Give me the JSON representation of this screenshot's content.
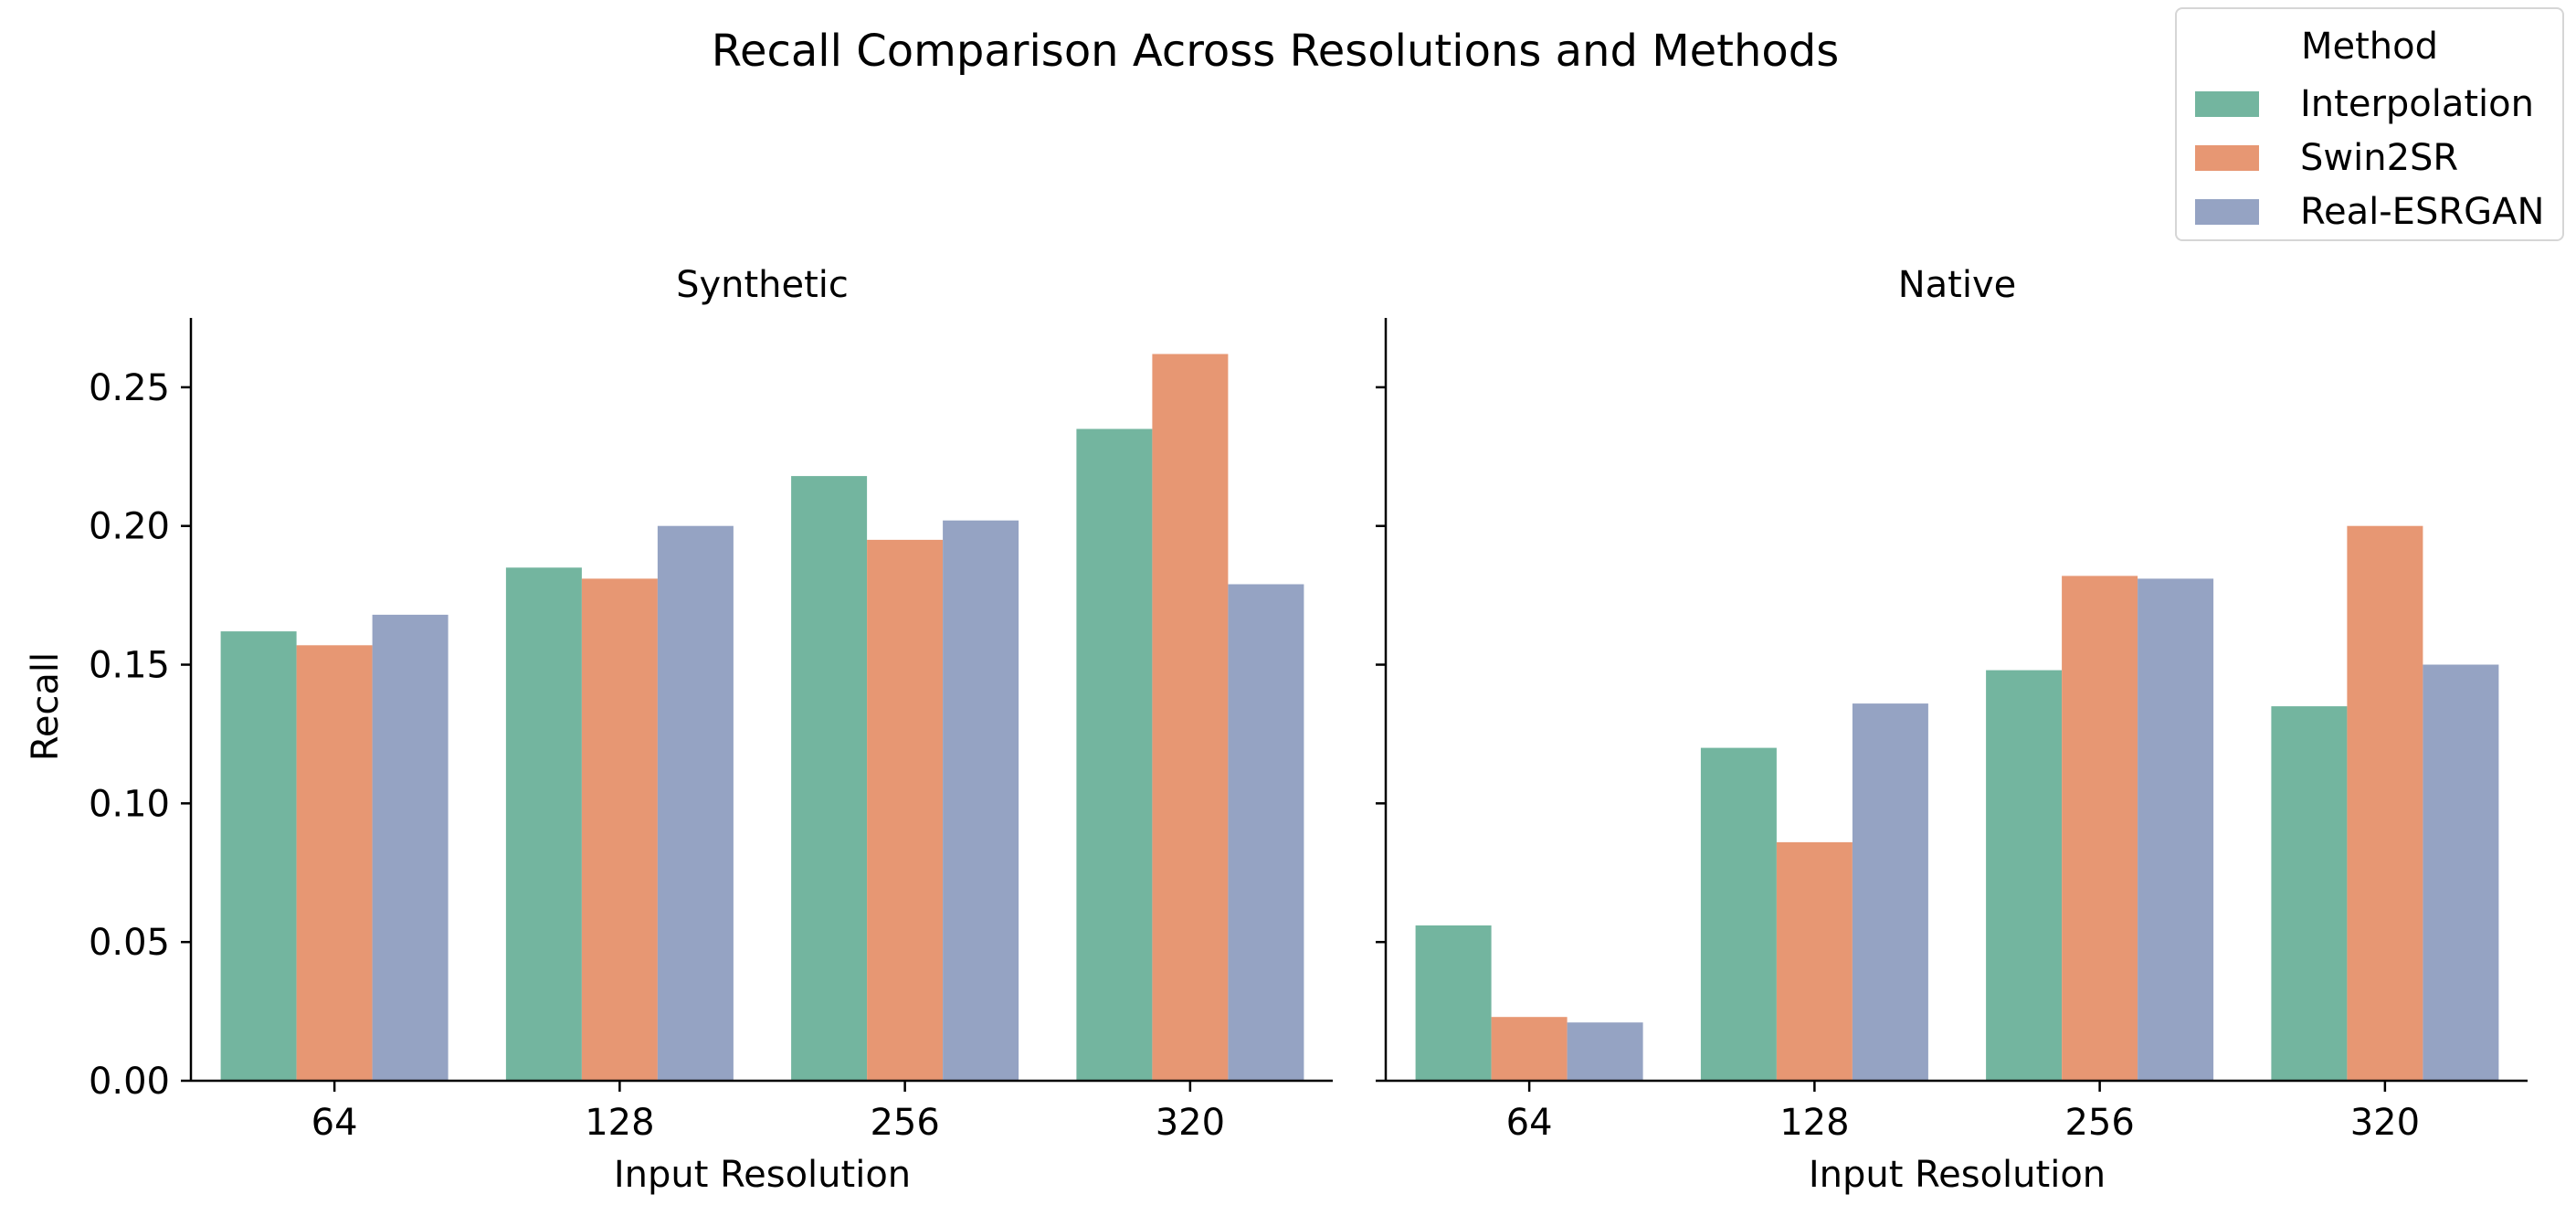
{
  "chart_data": {
    "type": "bar",
    "title": "Recall Comparison Across Resolutions and Methods",
    "legend": {
      "title": "Method",
      "placement": "top-right"
    },
    "ylabel": "Recall",
    "xlabel": "Input Resolution",
    "ylim": [
      0,
      0.275
    ],
    "yticks": [
      "0.00",
      "0.05",
      "0.10",
      "0.15",
      "0.20",
      "0.25"
    ],
    "categories": [
      "64",
      "128",
      "256",
      "320"
    ],
    "colors": {
      "Interpolation": "#73b59f",
      "Swin2SR": "#e79773",
      "Real-ESRGAN": "#95a3c3"
    },
    "panels": [
      {
        "title": "Synthetic",
        "series": [
          {
            "name": "Interpolation",
            "values": [
              0.162,
              0.185,
              0.218,
              0.235
            ]
          },
          {
            "name": "Swin2SR",
            "values": [
              0.157,
              0.181,
              0.195,
              0.262
            ]
          },
          {
            "name": "Real-ESRGAN",
            "values": [
              0.168,
              0.2,
              0.202,
              0.179
            ]
          }
        ]
      },
      {
        "title": "Native",
        "series": [
          {
            "name": "Interpolation",
            "values": [
              0.056,
              0.12,
              0.148,
              0.135
            ]
          },
          {
            "name": "Swin2SR",
            "values": [
              0.023,
              0.086,
              0.182,
              0.2
            ]
          },
          {
            "name": "Real-ESRGAN",
            "values": [
              0.021,
              0.136,
              0.181,
              0.15
            ]
          }
        ]
      }
    ]
  }
}
